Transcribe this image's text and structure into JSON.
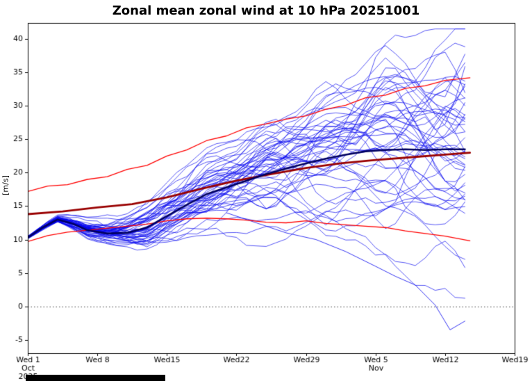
{
  "chart_data": {
    "type": "line",
    "title": "Zonal mean zonal wind at 10 hPa 20251001",
    "ylabel": "[m/s]",
    "ylim": [
      -7.0,
      42.4
    ],
    "yticks": [
      -5,
      0,
      5,
      10,
      15,
      20,
      25,
      30,
      35,
      40
    ],
    "xlim_days": [
      0,
      49
    ],
    "xticks": [
      {
        "day": 0,
        "label": "Wed 1",
        "sub": [
          "Oct",
          "2025"
        ]
      },
      {
        "day": 7,
        "label": "Wed 8",
        "sub": []
      },
      {
        "day": 14,
        "label": "Wed15",
        "sub": []
      },
      {
        "day": 21,
        "label": "Wed22",
        "sub": []
      },
      {
        "day": 28,
        "label": "Wed29",
        "sub": []
      },
      {
        "day": 35,
        "label": "Wed 5",
        "sub": [
          "Nov"
        ]
      },
      {
        "day": 42,
        "label": "Wed12",
        "sub": []
      },
      {
        "day": 49,
        "label": "Wed19",
        "sub": []
      }
    ],
    "zero_line": 0,
    "grid": false,
    "legend": "none",
    "colors": {
      "ensemble_member": "#0000ee",
      "ensemble_mean": "#000060",
      "climatology_mean": "#990000",
      "climatology_envelope": "#ff0000",
      "axis": "#000000"
    },
    "series": [
      {
        "name": "ensemble-member-outlier",
        "color": "#0000ee",
        "width": 0.8,
        "x": [
          20,
          23,
          26,
          29,
          32,
          35,
          37,
          39,
          41,
          42.5,
          44
        ],
        "y": [
          14,
          12.5,
          11,
          10,
          8.2,
          6.0,
          4.5,
          3.2,
          0.2,
          -3.5,
          -2.2
        ]
      },
      {
        "name": "climatology-upper",
        "color": "#ff0000",
        "width": 1.3,
        "x": [
          0,
          2,
          4,
          6,
          8,
          10,
          12,
          14,
          16,
          18,
          20,
          22,
          24,
          26,
          28,
          30,
          32,
          34,
          36,
          38,
          40,
          42,
          44.5
        ],
        "y": [
          17.2,
          18.0,
          18.2,
          19.0,
          19.4,
          20.5,
          21.1,
          22.5,
          23.4,
          24.8,
          25.5,
          26.7,
          27.3,
          28.0,
          28.5,
          29.5,
          30.1,
          31.2,
          31.6,
          32.6,
          33.0,
          33.8,
          34.2
        ]
      },
      {
        "name": "climatology-lower",
        "color": "#ff0000",
        "width": 1.3,
        "x": [
          0,
          2,
          4,
          6,
          8,
          10,
          12,
          14,
          16,
          18,
          20,
          22,
          24,
          26,
          28,
          30,
          32,
          34,
          36,
          38,
          40,
          42,
          44.5
        ],
        "y": [
          9.7,
          10.6,
          11.1,
          11.4,
          11.7,
          12.0,
          12.3,
          12.8,
          13.1,
          13.2,
          13.1,
          12.9,
          12.6,
          12.5,
          12.8,
          12.4,
          12.2,
          12.0,
          11.8,
          11.3,
          10.9,
          10.5,
          9.8
        ]
      },
      {
        "name": "climatology-mean",
        "color": "#990000",
        "width": 2.8,
        "x": [
          0,
          3.5,
          7,
          10.5,
          14,
          17.5,
          21,
          24.5,
          28,
          31.5,
          35,
          38.5,
          42,
          44.5
        ],
        "y": [
          13.8,
          14.2,
          14.8,
          15.3,
          16.3,
          17.6,
          18.8,
          19.8,
          20.7,
          21.4,
          21.9,
          22.3,
          22.7,
          23.0
        ]
      },
      {
        "name": "ensemble-mean",
        "color": "#000060",
        "width": 2.6,
        "x": [
          0,
          1.5,
          3,
          4.5,
          6,
          8,
          10,
          12,
          14,
          16,
          18,
          20,
          22,
          24,
          26,
          28,
          30,
          32,
          34,
          36,
          38,
          40,
          42,
          44
        ],
        "y": [
          10.3,
          11.8,
          13.0,
          12.4,
          11.4,
          10.9,
          11.0,
          11.8,
          13.5,
          15.2,
          16.8,
          17.8,
          18.8,
          19.8,
          20.6,
          21.4,
          22.1,
          22.7,
          23.2,
          23.4,
          23.5,
          23.4,
          23.5,
          23.5
        ]
      }
    ],
    "ensemble": {
      "color": "#0000ee",
      "width": 0.8,
      "count": 50,
      "seed": 20251001,
      "end_day": 44,
      "mean_x": [
        0,
        1.5,
        3,
        4.5,
        6,
        8,
        10,
        12,
        14,
        16,
        18,
        20,
        22,
        24,
        26,
        28,
        30,
        32,
        34,
        36,
        38,
        40,
        42,
        44
      ],
      "mean_y": [
        10.3,
        11.8,
        13.0,
        12.4,
        11.4,
        10.9,
        11.0,
        11.8,
        13.5,
        15.2,
        16.8,
        17.8,
        18.8,
        19.8,
        20.6,
        21.4,
        22.1,
        22.7,
        23.2,
        23.4,
        23.5,
        23.4,
        23.5,
        23.5
      ],
      "spread_x": [
        0,
        2,
        4,
        7,
        10,
        14,
        18,
        21,
        25,
        28,
        32,
        35,
        38,
        42,
        44
      ],
      "spread_y": [
        0.25,
        0.6,
        0.9,
        1.3,
        1.7,
        2.6,
        3.6,
        4.4,
        5.4,
        6.2,
        7.2,
        8.0,
        9.0,
        10.2,
        11.0
      ]
    }
  },
  "ui": {
    "footer_bar_color": "#000000"
  }
}
